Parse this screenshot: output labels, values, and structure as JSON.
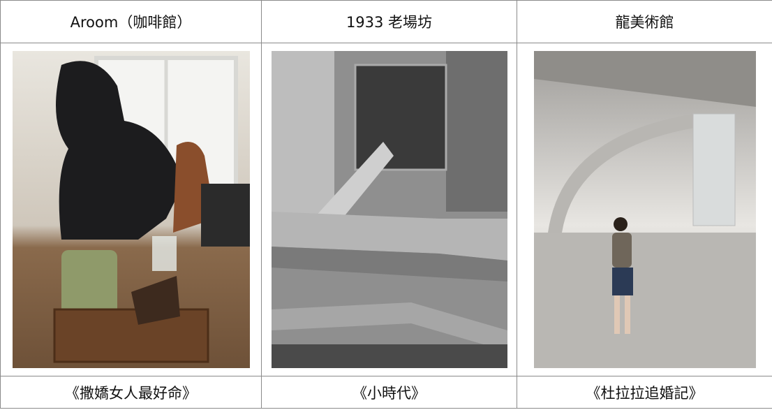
{
  "table": {
    "header": [
      "Aroom（咖啡館）",
      "1933 老場坊",
      "龍美術館"
    ],
    "captions": [
      "《撒嬌女人最好命》",
      "《小時代》",
      "《杜拉拉追婚記》"
    ]
  }
}
